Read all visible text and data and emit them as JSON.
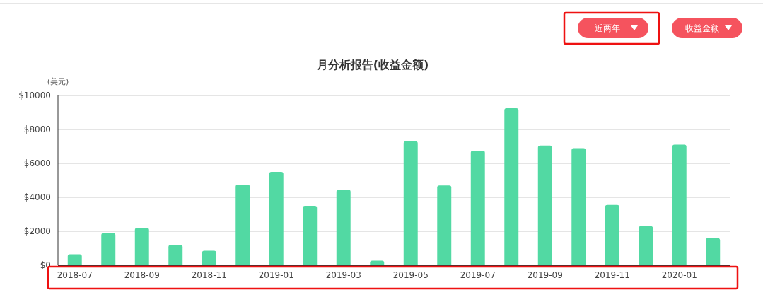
{
  "chart_data": {
    "type": "bar",
    "title": "月分析报告(收益金额)",
    "ylabel": "(美元)",
    "annotations": [
      "近两年",
      "收益金额"
    ],
    "categories": [
      "2018-07",
      null,
      "2018-09",
      null,
      "2018-11",
      null,
      "2019-01",
      null,
      "2019-03",
      null,
      "2019-05",
      null,
      "2019-07",
      null,
      "2019-09",
      null,
      "2019-11",
      null,
      "2020-01",
      null
    ],
    "values": [
      650,
      1900,
      2200,
      1200,
      850,
      4750,
      5500,
      3500,
      4450,
      270,
      7300,
      4700,
      6750,
      9250,
      7050,
      6900,
      3550,
      2300,
      7100,
      1600
    ],
    "color": "#52d9a3",
    "ylim": [
      0,
      10000
    ],
    "yticks": [
      {
        "value": 0,
        "label": "$0"
      },
      {
        "value": 2000,
        "label": "$2000"
      },
      {
        "value": 4000,
        "label": "$4000"
      },
      {
        "value": 6000,
        "label": "$6000"
      },
      {
        "value": 8000,
        "label": "$8000"
      },
      {
        "value": 10000,
        "label": "$10000"
      }
    ],
    "grid": "y"
  }
}
